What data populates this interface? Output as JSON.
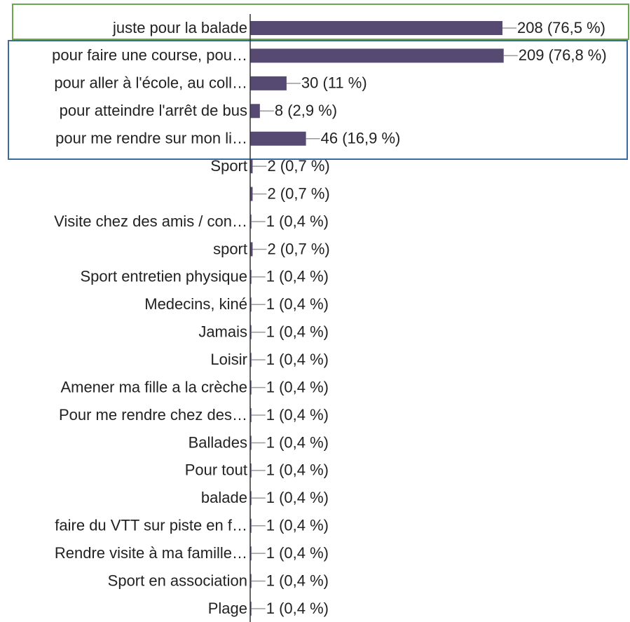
{
  "chart_data": {
    "type": "bar",
    "categories": [
      "juste pour la balade",
      "pour faire une course, pou…",
      "pour aller à l'école, au coll…",
      "pour atteindre l'arrêt de bus",
      "pour me rendre sur mon li…",
      "Sport",
      null,
      "Visite chez des amis / con…",
      "sport",
      "Sport entretien physique",
      "Medecins, kiné",
      "Jamais",
      "Loisir",
      "Amener ma fille a la crèche",
      "Pour me rendre chez des…",
      "Ballades",
      "Pour tout",
      "balade",
      "faire du VTT sur piste en f…",
      "Rendre visite à ma famille…",
      "Sport en association",
      "Plage"
    ],
    "values": [
      208,
      209,
      30,
      8,
      46,
      2,
      2,
      1,
      2,
      1,
      1,
      1,
      1,
      1,
      1,
      1,
      1,
      1,
      1,
      1,
      1,
      1
    ],
    "value_labels": [
      "208 (76,5 %)",
      "209 (76,8 %)",
      "30 (11 %)",
      "8 (2,9 %)",
      "46 (16,9 %)",
      "2 (0,7 %)",
      "2 (0,7 %)",
      "1 (0,4 %)",
      "2 (0,7 %)",
      "1 (0,4 %)",
      "1 (0,4 %)",
      "1 (0,4 %)",
      "1 (0,4 %)",
      "1 (0,4 %)",
      "1 (0,4 %)",
      "1 (0,4 %)",
      "1 (0,4 %)",
      "1 (0,4 %)",
      "1 (0,4 %)",
      "1 (0,4 %)",
      "1 (0,4 %)",
      "1 (0,4 %)"
    ],
    "color": "#574a72",
    "xlim": [
      0,
      312
    ]
  }
}
